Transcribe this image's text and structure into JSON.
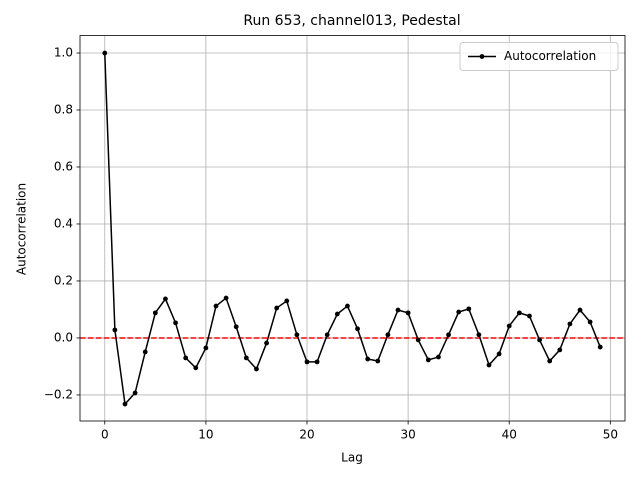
{
  "chart_data": {
    "type": "line",
    "title": "Run 653, channel013, Pedestal",
    "x_label": "Lag",
    "y_label": "Autocorrelation",
    "x": [
      0,
      1,
      2,
      3,
      4,
      5,
      6,
      7,
      8,
      9,
      10,
      11,
      12,
      13,
      14,
      15,
      16,
      17,
      18,
      19,
      20,
      21,
      22,
      23,
      24,
      25,
      26,
      27,
      28,
      29,
      30,
      31,
      32,
      33,
      34,
      35,
      36,
      37,
      38,
      39,
      40,
      41,
      42,
      43,
      44,
      45,
      46,
      47,
      48,
      49
    ],
    "series": [
      {
        "name": "Autocorrelation",
        "color": "#000000",
        "values": [
          1.0,
          0.028,
          -0.232,
          -0.193,
          -0.049,
          0.088,
          0.137,
          0.053,
          -0.07,
          -0.105,
          -0.035,
          0.112,
          0.14,
          0.039,
          -0.07,
          -0.109,
          -0.018,
          0.105,
          0.13,
          0.011,
          -0.084,
          -0.084,
          0.011,
          0.084,
          0.112,
          0.032,
          -0.074,
          -0.081,
          0.011,
          0.098,
          0.088,
          -0.007,
          -0.077,
          -0.067,
          0.011,
          0.091,
          0.102,
          0.011,
          -0.095,
          -0.056,
          0.042,
          0.088,
          0.077,
          -0.007,
          -0.081,
          -0.042,
          0.049,
          0.098,
          0.056,
          -0.032
        ]
      }
    ],
    "reference_line": {
      "value": 0,
      "color": "#ff0000"
    },
    "xlim": [
      -2.45,
      51.45
    ],
    "xticks": [
      0,
      10,
      20,
      30,
      40,
      50
    ],
    "ylim": [
      -0.2915,
      1.0615
    ],
    "yticks": [
      {
        "value": -0.2,
        "label": "−0.2"
      },
      {
        "value": 0,
        "label": "0.0"
      },
      {
        "value": 0.2,
        "label": "0.2"
      },
      {
        "value": 0.4,
        "label": "0.4"
      },
      {
        "value": 0.6,
        "label": "0.6"
      },
      {
        "value": 0.8,
        "label": "0.8"
      },
      {
        "value": 1.0,
        "label": "1.0"
      }
    ],
    "grid": true,
    "legend": "upper right"
  }
}
